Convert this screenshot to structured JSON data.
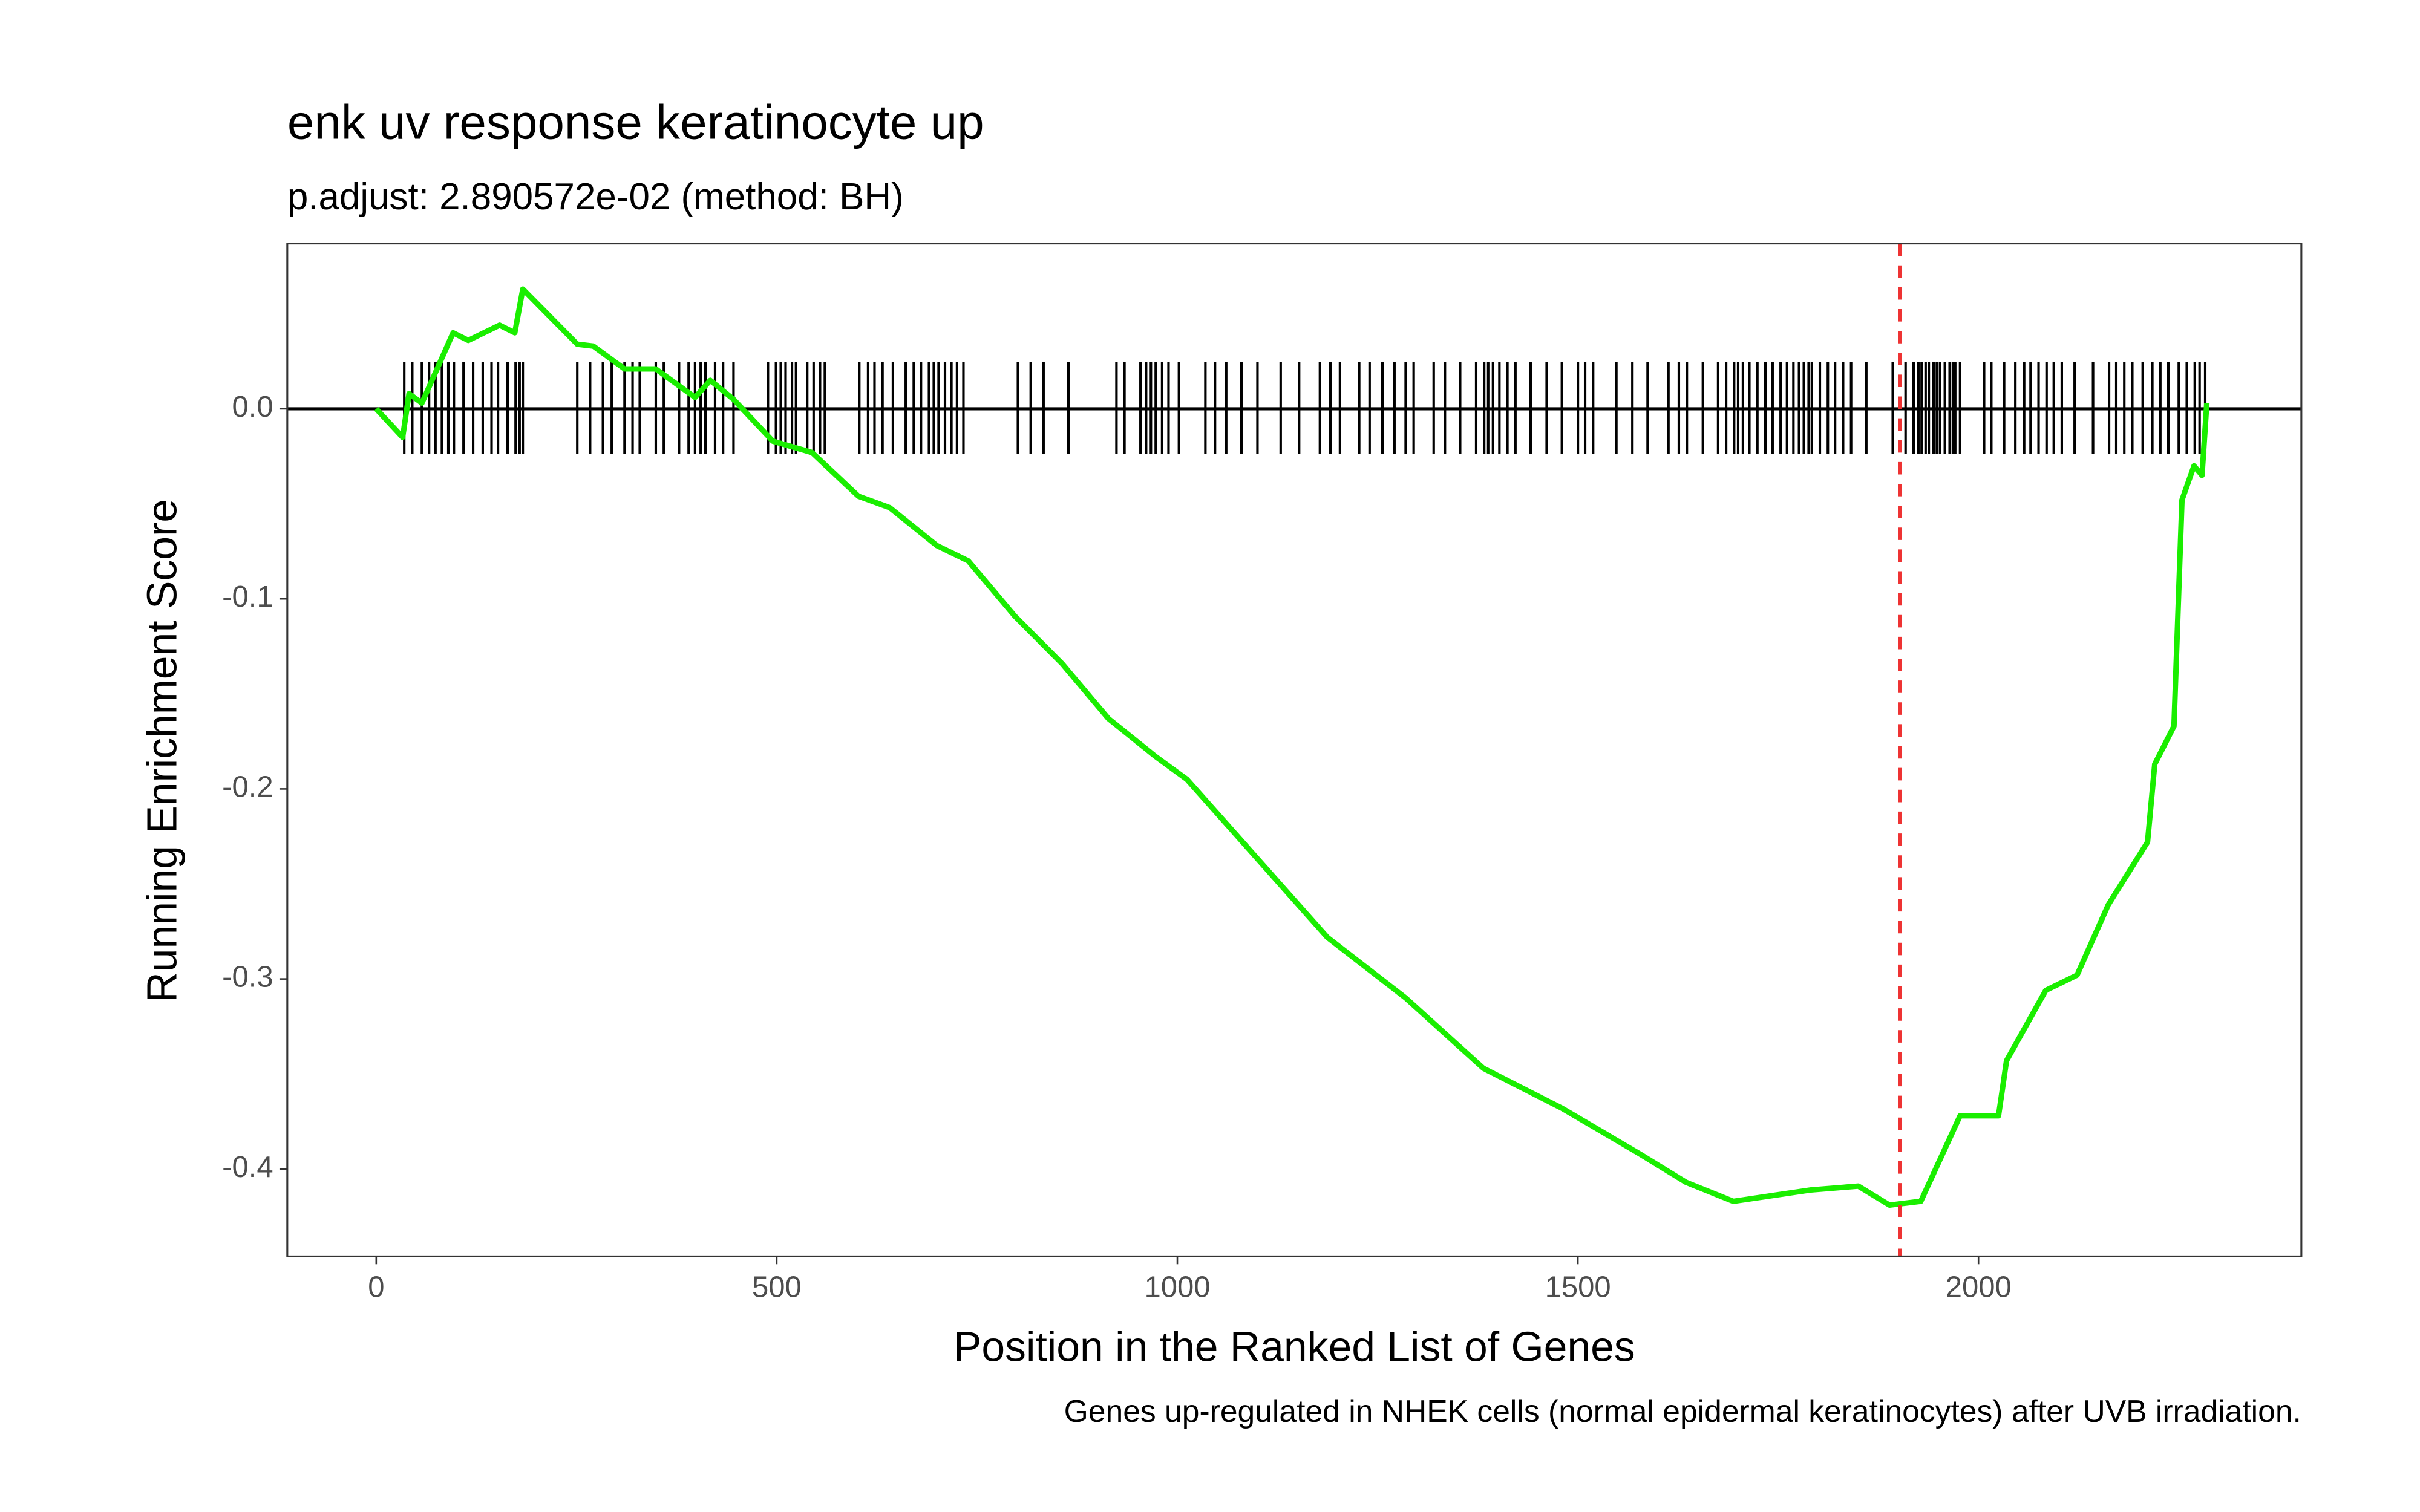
{
  "chart_data": {
    "type": "line",
    "title": "enk uv response keratinocyte up",
    "subtitle": "p.adjust: 2.890572e-02 (method: BH)",
    "x_label": "Position in the Ranked List of Genes",
    "y_label": "Running Enrichment Score",
    "caption": "Genes up-regulated in NHEK cells (normal epidermal keratinocytes) after UVB irradiation.",
    "color": "#1aee00",
    "x": [
      0,
      33,
      41,
      57,
      96,
      115,
      154,
      173,
      183,
      251,
      271,
      310,
      349,
      398,
      417,
      446,
      495,
      544,
      602,
      641,
      700,
      739,
      797,
      856,
      914,
      973,
      1012,
      1090,
      1187,
      1285,
      1382,
      1480,
      1577,
      1635,
      1694,
      1791,
      1850,
      1889,
      1928,
      1977,
      2025,
      2035,
      2084,
      2123,
      2162,
      2211,
      2220,
      2244,
      2254,
      2269,
      2279,
      2285
    ],
    "values": [
      0.0,
      -0.015,
      0.008,
      0.003,
      0.04,
      0.036,
      0.044,
      0.04,
      0.063,
      0.034,
      0.033,
      0.021,
      0.021,
      0.006,
      0.015,
      0.005,
      -0.017,
      -0.023,
      -0.046,
      -0.052,
      -0.072,
      -0.08,
      -0.109,
      -0.134,
      -0.163,
      -0.183,
      -0.195,
      -0.232,
      -0.278,
      -0.31,
      -0.347,
      -0.368,
      -0.392,
      -0.407,
      -0.417,
      -0.411,
      -0.409,
      -0.419,
      -0.417,
      -0.372,
      -0.372,
      -0.343,
      -0.306,
      -0.298,
      -0.261,
      -0.228,
      -0.187,
      -0.167,
      -0.048,
      -0.03,
      -0.035,
      0.003
    ],
    "hits": [
      35,
      45,
      57,
      66,
      74,
      82,
      90,
      97,
      109,
      121,
      133,
      144,
      152,
      164,
      174,
      179,
      183,
      251,
      267,
      283,
      294,
      310,
      320,
      329,
      349,
      359,
      378,
      390,
      398,
      405,
      411,
      423,
      433,
      446,
      489,
      499,
      505,
      511,
      519,
      524,
      538,
      546,
      554,
      560,
      603,
      614,
      622,
      632,
      645,
      661,
      671,
      680,
      690,
      696,
      702,
      710,
      718,
      725,
      733,
      801,
      817,
      833,
      864,
      924,
      934,
      954,
      961,
      967,
      973,
      981,
      989,
      1002,
      1035,
      1047,
      1061,
      1080,
      1100,
      1129,
      1152,
      1178,
      1191,
      1203,
      1227,
      1240,
      1256,
      1271,
      1285,
      1295,
      1320,
      1334,
      1353,
      1373,
      1383,
      1388,
      1394,
      1402,
      1412,
      1422,
      1441,
      1461,
      1480,
      1500,
      1509,
      1519,
      1548,
      1568,
      1587,
      1613,
      1626,
      1636,
      1656,
      1675,
      1685,
      1695,
      1700,
      1706,
      1714,
      1724,
      1734,
      1743,
      1753,
      1761,
      1769,
      1776,
      1782,
      1788,
      1792,
      1802,
      1812,
      1821,
      1831,
      1841,
      1860,
      1893,
      1909,
      1919,
      1925,
      1929,
      1934,
      1938,
      1944,
      1948,
      1952,
      1958,
      1964,
      1968,
      1971,
      1977,
      2007,
      2016,
      2032,
      2046,
      2057,
      2065,
      2075,
      2085,
      2094,
      2104,
      2120,
      2143,
      2163,
      2172,
      2182,
      2192,
      2205,
      2217,
      2227,
      2237,
      2250,
      2260,
      2270,
      2276,
      2283
    ],
    "hits_color": "#000000",
    "vline": 1902,
    "vline_color": "#ee3333",
    "hline": 0,
    "xlim": [
      -111,
      2403
    ],
    "ylim": [
      -0.446,
      0.087
    ],
    "xticks": [
      0,
      500,
      1000,
      1500,
      2000
    ],
    "yticks": [
      -0.4,
      -0.3,
      -0.2,
      -0.1,
      {
        "value": 0,
        "label": "0.0"
      }
    ],
    "grid": false
  }
}
